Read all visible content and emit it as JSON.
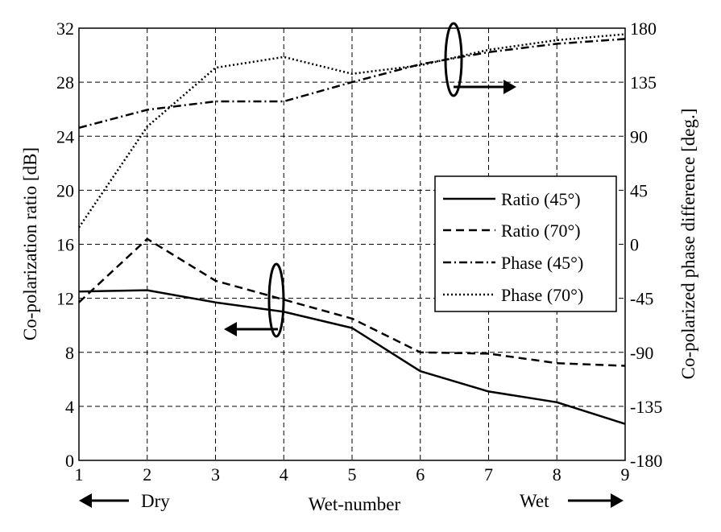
{
  "chart_data": {
    "type": "line",
    "title": "",
    "xlabel": "Wet-number",
    "ylabel_left": "Co-polarization ratio [dB]",
    "ylabel_right": "Co-polarized phase difference [deg.]",
    "x": [
      1,
      2,
      3,
      4,
      5,
      6,
      7,
      8,
      9
    ],
    "xlim": [
      1,
      9
    ],
    "ylim_left": [
      0,
      32
    ],
    "ylim_right": [
      -180,
      180
    ],
    "x_ticks": [
      "1",
      "2",
      "3",
      "4",
      "5",
      "6",
      "7",
      "8",
      "9"
    ],
    "y_ticks_left": [
      "0",
      "4",
      "8",
      "12",
      "16",
      "20",
      "24",
      "28",
      "32"
    ],
    "y_ticks_right": [
      "-180",
      "-135",
      "-90",
      "-45",
      "0",
      "45",
      "90",
      "135",
      "180"
    ],
    "grid": true,
    "legend_position": "center-right",
    "annotations": {
      "dry_label": "Dry",
      "wet_label": "Wet"
    },
    "series": [
      {
        "name": "Ratio (45°)",
        "axis": "left",
        "style": "solid",
        "values": [
          12.5,
          12.6,
          11.7,
          11.0,
          9.8,
          6.6,
          5.1,
          4.3,
          2.7
        ]
      },
      {
        "name": "Ratio (70°)",
        "axis": "left",
        "style": "dashed",
        "values": [
          11.7,
          16.4,
          13.3,
          11.9,
          10.5,
          8.0,
          7.9,
          7.2,
          7.0
        ]
      },
      {
        "name": "Phase (45°)",
        "axis": "right",
        "style": "dashdot",
        "values": [
          97,
          112,
          119,
          119,
          135,
          150,
          160,
          167,
          171
        ]
      },
      {
        "name": "Phase (70°)",
        "axis": "right",
        "style": "dotted",
        "values": [
          14,
          98,
          147,
          156,
          142,
          149,
          162,
          170,
          175
        ]
      }
    ]
  }
}
